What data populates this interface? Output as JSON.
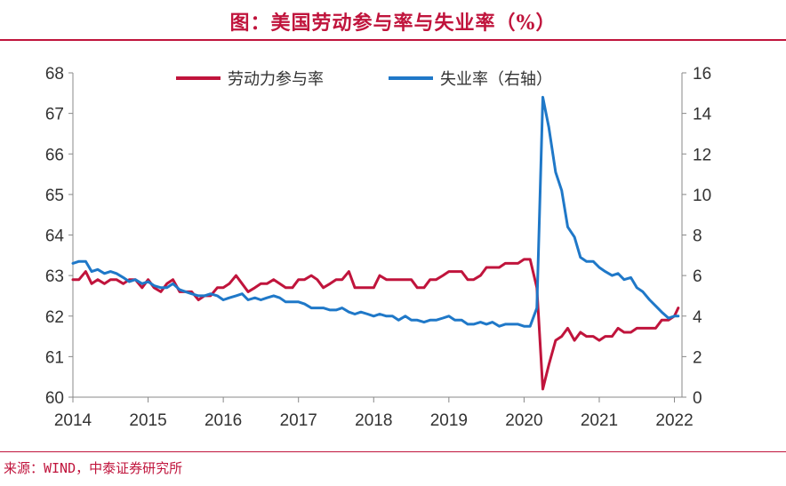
{
  "header": {
    "title": "图：美国劳动参与率与失业率（%）"
  },
  "footer": {
    "source": "来源：WIND，中泰证券研究所"
  },
  "colors": {
    "accent": "#c0143c",
    "lfpr": "#c0143c",
    "unrate": "#1f78c8",
    "axis": "#888888"
  },
  "chart_data": {
    "type": "line",
    "title": "图：美国劳动参与率与失业率（%）",
    "x_ticks": [
      "2014",
      "2015",
      "2016",
      "2017",
      "2018",
      "2019",
      "2020",
      "2021",
      "2022"
    ],
    "x_range": [
      2014.0,
      2022.1
    ],
    "y_left": {
      "range": [
        60,
        68
      ],
      "ticks": [
        "60",
        "61",
        "62",
        "63",
        "64",
        "65",
        "66",
        "67",
        "68"
      ]
    },
    "y_right": {
      "range": [
        0,
        16
      ],
      "ticks": [
        "0",
        "2",
        "4",
        "6",
        "8",
        "10",
        "12",
        "14",
        "16"
      ]
    },
    "legend": [
      "劳动力参与率",
      "失业率（右轴）"
    ],
    "series": [
      {
        "name": "劳动力参与率",
        "axis": "left",
        "color": "#c0143c",
        "x": [
          2014.0,
          2014.08,
          2014.17,
          2014.25,
          2014.33,
          2014.42,
          2014.5,
          2014.58,
          2014.67,
          2014.75,
          2014.83,
          2014.92,
          2015.0,
          2015.08,
          2015.17,
          2015.25,
          2015.33,
          2015.42,
          2015.5,
          2015.58,
          2015.67,
          2015.75,
          2015.83,
          2015.92,
          2016.0,
          2016.08,
          2016.17,
          2016.25,
          2016.33,
          2016.42,
          2016.5,
          2016.58,
          2016.67,
          2016.75,
          2016.83,
          2016.92,
          2017.0,
          2017.08,
          2017.17,
          2017.25,
          2017.33,
          2017.42,
          2017.5,
          2017.58,
          2017.67,
          2017.75,
          2017.83,
          2017.92,
          2018.0,
          2018.08,
          2018.17,
          2018.25,
          2018.33,
          2018.42,
          2018.5,
          2018.58,
          2018.67,
          2018.75,
          2018.83,
          2018.92,
          2019.0,
          2019.08,
          2019.17,
          2019.25,
          2019.33,
          2019.42,
          2019.5,
          2019.58,
          2019.67,
          2019.75,
          2019.83,
          2019.92,
          2020.0,
          2020.08,
          2020.17,
          2020.25,
          2020.33,
          2020.42,
          2020.5,
          2020.58,
          2020.67,
          2020.75,
          2020.83,
          2020.92,
          2021.0,
          2021.08,
          2021.17,
          2021.25,
          2021.33,
          2021.42,
          2021.5,
          2021.58,
          2021.67,
          2021.75,
          2021.83,
          2021.92,
          2022.0,
          2022.05
        ],
        "values": [
          62.9,
          62.9,
          63.1,
          62.8,
          62.9,
          62.8,
          62.9,
          62.9,
          62.8,
          62.9,
          62.9,
          62.7,
          62.9,
          62.7,
          62.6,
          62.8,
          62.9,
          62.6,
          62.6,
          62.6,
          62.4,
          62.5,
          62.5,
          62.7,
          62.7,
          62.8,
          63.0,
          62.8,
          62.6,
          62.7,
          62.8,
          62.8,
          62.9,
          62.8,
          62.7,
          62.7,
          62.9,
          62.9,
          63.0,
          62.9,
          62.7,
          62.8,
          62.9,
          62.9,
          63.1,
          62.7,
          62.7,
          62.7,
          62.7,
          63.0,
          62.9,
          62.9,
          62.9,
          62.9,
          62.9,
          62.7,
          62.7,
          62.9,
          62.9,
          63.0,
          63.1,
          63.1,
          63.1,
          62.9,
          62.9,
          63.0,
          63.2,
          63.2,
          63.2,
          63.3,
          63.3,
          63.3,
          63.4,
          63.4,
          62.7,
          60.2,
          60.8,
          61.4,
          61.5,
          61.7,
          61.4,
          61.6,
          61.5,
          61.5,
          61.4,
          61.5,
          61.5,
          61.7,
          61.6,
          61.6,
          61.7,
          61.7,
          61.7,
          61.7,
          61.9,
          61.9,
          62.0,
          62.2
        ]
      },
      {
        "name": "失业率（右轴）",
        "axis": "right",
        "color": "#1f78c8",
        "x": [
          2014.0,
          2014.08,
          2014.17,
          2014.25,
          2014.33,
          2014.42,
          2014.5,
          2014.58,
          2014.67,
          2014.75,
          2014.83,
          2014.92,
          2015.0,
          2015.08,
          2015.17,
          2015.25,
          2015.33,
          2015.42,
          2015.5,
          2015.58,
          2015.67,
          2015.75,
          2015.83,
          2015.92,
          2016.0,
          2016.08,
          2016.17,
          2016.25,
          2016.33,
          2016.42,
          2016.5,
          2016.58,
          2016.67,
          2016.75,
          2016.83,
          2016.92,
          2017.0,
          2017.08,
          2017.17,
          2017.25,
          2017.33,
          2017.42,
          2017.5,
          2017.58,
          2017.67,
          2017.75,
          2017.83,
          2017.92,
          2018.0,
          2018.08,
          2018.17,
          2018.25,
          2018.33,
          2018.42,
          2018.5,
          2018.58,
          2018.67,
          2018.75,
          2018.83,
          2018.92,
          2019.0,
          2019.08,
          2019.17,
          2019.25,
          2019.33,
          2019.42,
          2019.5,
          2019.58,
          2019.67,
          2019.75,
          2019.83,
          2019.92,
          2020.0,
          2020.08,
          2020.17,
          2020.25,
          2020.33,
          2020.42,
          2020.5,
          2020.58,
          2020.67,
          2020.75,
          2020.83,
          2020.92,
          2021.0,
          2021.08,
          2021.17,
          2021.25,
          2021.33,
          2021.42,
          2021.5,
          2021.58,
          2021.67,
          2021.75,
          2021.83,
          2021.92,
          2022.0,
          2022.05
        ],
        "values": [
          6.6,
          6.7,
          6.7,
          6.2,
          6.3,
          6.1,
          6.2,
          6.1,
          5.9,
          5.7,
          5.8,
          5.6,
          5.7,
          5.5,
          5.4,
          5.4,
          5.6,
          5.3,
          5.2,
          5.1,
          5.0,
          5.0,
          5.1,
          5.0,
          4.8,
          4.9,
          5.0,
          5.1,
          4.8,
          4.9,
          4.8,
          4.9,
          5.0,
          4.9,
          4.7,
          4.7,
          4.7,
          4.6,
          4.4,
          4.4,
          4.4,
          4.3,
          4.3,
          4.4,
          4.2,
          4.1,
          4.2,
          4.1,
          4.0,
          4.1,
          4.0,
          4.0,
          3.8,
          4.0,
          3.8,
          3.8,
          3.7,
          3.8,
          3.8,
          3.9,
          4.0,
          3.8,
          3.8,
          3.6,
          3.6,
          3.7,
          3.6,
          3.7,
          3.5,
          3.6,
          3.6,
          3.6,
          3.5,
          3.5,
          4.4,
          14.8,
          13.3,
          11.1,
          10.2,
          8.4,
          7.9,
          6.9,
          6.7,
          6.7,
          6.4,
          6.2,
          6.0,
          6.1,
          5.8,
          5.9,
          5.4,
          5.2,
          4.8,
          4.5,
          4.2,
          3.9,
          4.0,
          4.0
        ]
      }
    ]
  }
}
